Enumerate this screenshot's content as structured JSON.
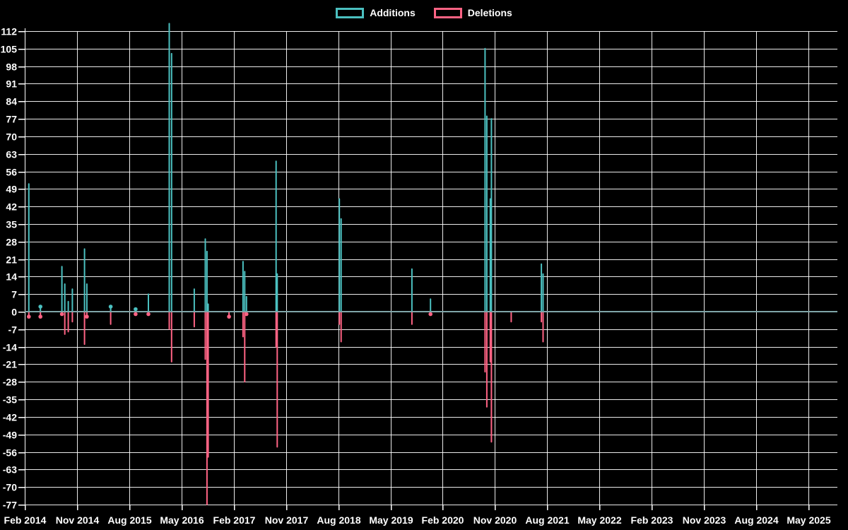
{
  "chart_data": {
    "type": "line",
    "title": "",
    "description": "Weekly code additions/deletions frequency chart, spiky line style on black background",
    "legend_position": "top",
    "background": "#000000",
    "grid_color": "#ffffff",
    "text_color": "#ffffff",
    "zero_baseline_color": "#7fa5a8",
    "y_axis": {
      "min": -77,
      "max": 112,
      "tick_step": 7,
      "ticks": [
        112,
        105,
        98,
        91,
        84,
        77,
        70,
        63,
        56,
        49,
        42,
        35,
        28,
        21,
        14,
        7,
        0,
        -7,
        -14,
        -21,
        -28,
        -35,
        -42,
        -49,
        -56,
        -63,
        -70,
        -77
      ]
    },
    "x_axis": {
      "tick_labels": [
        "Feb 2014",
        "Nov 2014",
        "Aug 2015",
        "May 2016",
        "Feb 2017",
        "Nov 2017",
        "Aug 2018",
        "May 2019",
        "Feb 2020",
        "Nov 2020",
        "Aug 2021",
        "May 2022",
        "Feb 2023",
        "Nov 2023",
        "Aug 2024",
        "May 2025"
      ],
      "tick_interval_months": 9,
      "total_months": 140
    },
    "series": [
      {
        "name": "Additions",
        "color": "#4bc0c0"
      },
      {
        "name": "Deletions",
        "color": "#ff6384"
      }
    ],
    "events_format": "[months_after_Feb2014, additions, deletions]; value 0 between events",
    "events": [
      [
        0.7,
        51,
        -2
      ],
      [
        2.7,
        2,
        -2
      ],
      [
        6.4,
        18,
        -1
      ],
      [
        6.9,
        11,
        -9
      ],
      [
        7.5,
        4,
        -8
      ],
      [
        8.2,
        9,
        -4
      ],
      [
        10.3,
        25,
        -13
      ],
      [
        10.7,
        11,
        -2
      ],
      [
        14.8,
        2,
        -5
      ],
      [
        19.1,
        1,
        -1
      ],
      [
        21.3,
        7,
        -1
      ],
      [
        24.9,
        115,
        -7
      ],
      [
        25.3,
        103,
        -20
      ],
      [
        29.2,
        9,
        -6
      ],
      [
        31.1,
        29,
        -19
      ],
      [
        31.4,
        24,
        -77
      ],
      [
        31.6,
        3,
        -58
      ],
      [
        35.2,
        0,
        -2
      ],
      [
        37.6,
        20,
        -10
      ],
      [
        37.9,
        16,
        -28
      ],
      [
        38.2,
        6,
        -1
      ],
      [
        43.3,
        60,
        -14
      ],
      [
        43.5,
        15,
        -54
      ],
      [
        54.2,
        45,
        -5
      ],
      [
        54.5,
        37,
        -12
      ],
      [
        66.7,
        17,
        -5
      ],
      [
        69.9,
        5,
        -1
      ],
      [
        79.3,
        105,
        -24
      ],
      [
        79.6,
        78,
        -38
      ],
      [
        80.2,
        45,
        -20
      ],
      [
        80.4,
        77,
        -52
      ],
      [
        83.8,
        0,
        -4
      ],
      [
        89.0,
        19,
        -4
      ],
      [
        89.3,
        15,
        -12
      ]
    ]
  }
}
